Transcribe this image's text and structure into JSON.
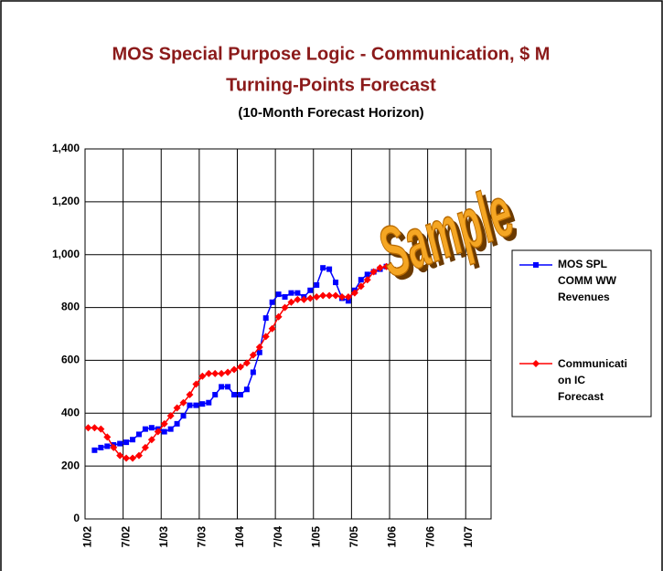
{
  "chart_data": {
    "type": "line",
    "title": "MOS Special Purpose Logic - Communication, $ M",
    "subtitle": "Turning-Points Forecast",
    "subtitle2": "(10-Month Forecast Horizon)",
    "watermark": "Sample",
    "categories": [
      "1/02",
      null,
      null,
      null,
      null,
      null,
      "7/02",
      null,
      null,
      null,
      null,
      null,
      "1/03",
      null,
      null,
      null,
      null,
      null,
      "7/03",
      null,
      null,
      null,
      null,
      null,
      "1/04",
      null,
      null,
      null,
      null,
      null,
      "7/04",
      null,
      null,
      null,
      null,
      null,
      "1/05",
      null,
      null,
      null,
      null,
      null,
      "7/05",
      null,
      null,
      null,
      null,
      null,
      "1/06",
      null,
      null,
      null,
      null,
      null,
      "7/06",
      null,
      null,
      null,
      null,
      null,
      "1/07",
      null,
      null,
      null
    ],
    "series": [
      {
        "name": "MOS SPL COMM WW Revenues",
        "color": "#0000ff",
        "marker": "square",
        "values": [
          null,
          260,
          270,
          275,
          280,
          285,
          290,
          300,
          320,
          340,
          345,
          340,
          330,
          340,
          360,
          390,
          430,
          430,
          435,
          440,
          470,
          500,
          500,
          470,
          470,
          490,
          555,
          630,
          760,
          820,
          850,
          840,
          855,
          855,
          840,
          865,
          885,
          950,
          945,
          895,
          835,
          825,
          865,
          905,
          925,
          935,
          945,
          955,
          null,
          null,
          null,
          null,
          null,
          null,
          null,
          null,
          null,
          null,
          null,
          null,
          null,
          null,
          null,
          null
        ]
      },
      {
        "name": "Communication IC Forecast",
        "color": "#ff0000",
        "marker": "diamond",
        "values": [
          345,
          345,
          340,
          310,
          270,
          240,
          230,
          230,
          240,
          270,
          300,
          330,
          360,
          390,
          420,
          440,
          470,
          510,
          540,
          550,
          550,
          550,
          555,
          565,
          575,
          590,
          620,
          650,
          690,
          720,
          765,
          800,
          820,
          830,
          830,
          835,
          840,
          845,
          845,
          845,
          840,
          840,
          855,
          880,
          905,
          935,
          950,
          955,
          null,
          null,
          null,
          null,
          null,
          null,
          null,
          null,
          null,
          null,
          null,
          null,
          null,
          null,
          null,
          null
        ]
      }
    ],
    "ylim": [
      0,
      1400
    ],
    "yticks": [
      0,
      200,
      400,
      600,
      800,
      {
        "value": 1000,
        "label": "1,000"
      },
      {
        "value": 1200,
        "label": "1,200"
      },
      {
        "value": 1400,
        "label": "1,400"
      }
    ],
    "grid": true
  }
}
